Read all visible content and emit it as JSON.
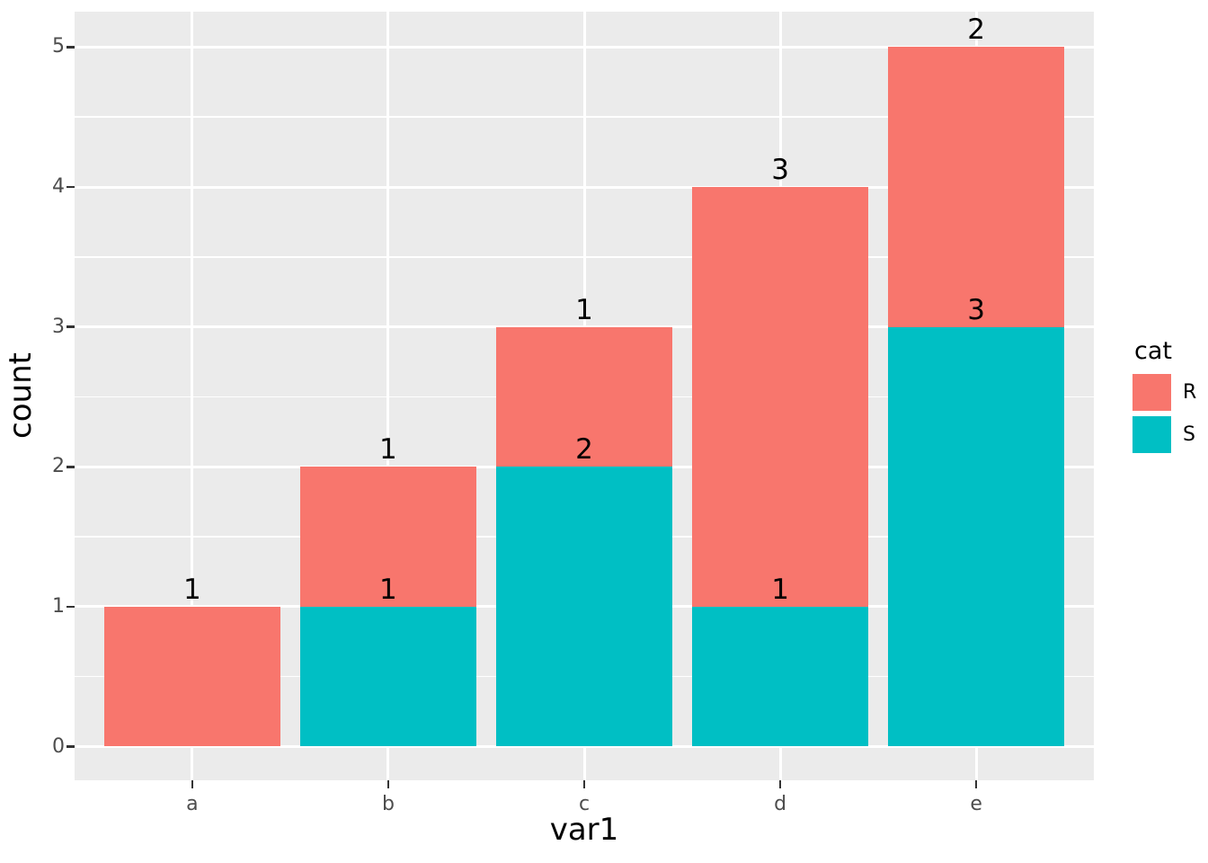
{
  "figure": {
    "background": "#FFFFFF",
    "panel_background": "#EBEBEB",
    "grid_color": "#FFFFFF",
    "tick_mark_color": "#333333",
    "tick_label_color": "#4D4D4D",
    "text_color": "#000000"
  },
  "chart_data": {
    "type": "bar",
    "stacked": true,
    "title": "",
    "xlabel": "var1",
    "ylabel": "count",
    "categories": [
      "a",
      "b",
      "c",
      "d",
      "e"
    ],
    "series": [
      {
        "name": "S",
        "color": "#00BFC4",
        "values": [
          0,
          1,
          2,
          1,
          3
        ]
      },
      {
        "name": "R",
        "color": "#F8766D",
        "values": [
          1,
          1,
          1,
          3,
          2
        ]
      }
    ],
    "totals": [
      1,
      2,
      3,
      4,
      5
    ],
    "segment_labels_shown": true,
    "y_ticks": [
      "0",
      "1",
      "2",
      "3",
      "4",
      "5"
    ],
    "ylim": [
      0,
      5
    ],
    "grid": {
      "major": true,
      "minor": true,
      "minor_step": 0.5
    },
    "legend": {
      "title": "cat",
      "position": "right",
      "entries": [
        {
          "label": "R",
          "color": "#F8766D"
        },
        {
          "label": "S",
          "color": "#00BFC4"
        }
      ]
    }
  }
}
